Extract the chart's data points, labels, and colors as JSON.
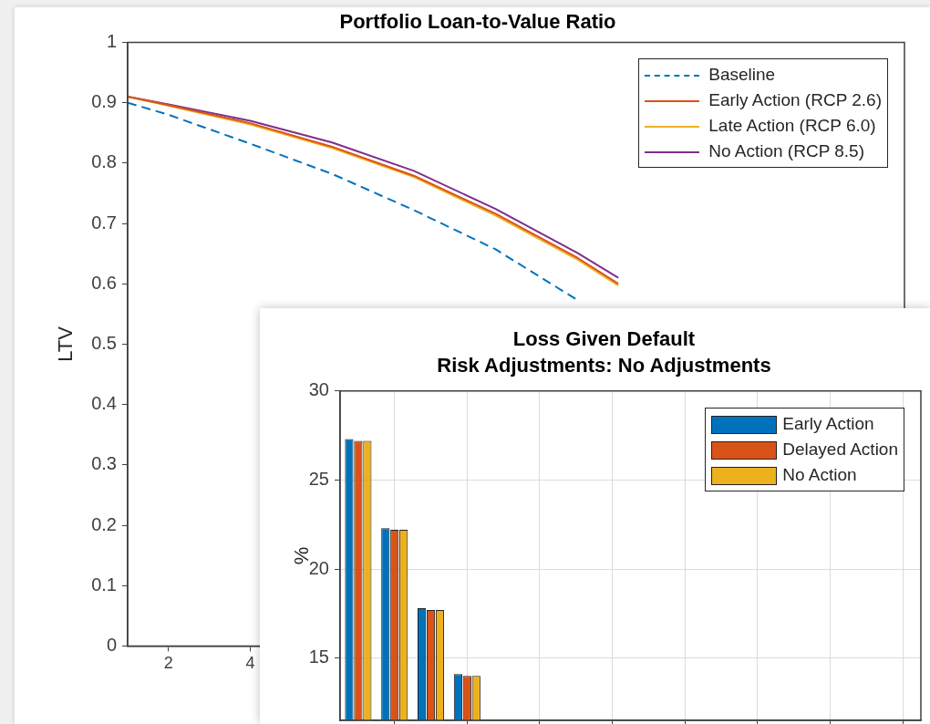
{
  "chart_data": [
    {
      "type": "line",
      "title": "Portfolio Loan-to-Value Ratio",
      "ylabel": "LTV",
      "xlim": [
        1,
        20
      ],
      "xticks": [
        2,
        4
      ],
      "ylim": [
        0,
        1
      ],
      "yticks": [
        0,
        0.1,
        0.2,
        0.3,
        0.4,
        0.5,
        0.6,
        0.7,
        0.8,
        0.9,
        1
      ],
      "grid": false,
      "legend": "top right",
      "marker": "none",
      "series": [
        {
          "name": "Baseline",
          "color": "#0072bd",
          "line_style": "dashed",
          "x": [
            1,
            2,
            4,
            6,
            8,
            10,
            12
          ],
          "values": [
            0.9,
            0.88,
            0.832,
            0.782,
            0.722,
            0.657,
            0.573
          ]
        },
        {
          "name": "Early Action (RCP 2.6)",
          "color": "#d95319",
          "line_style": "solid",
          "x": [
            1,
            2,
            4,
            6,
            8,
            10,
            12,
            13
          ],
          "values": [
            0.91,
            0.896,
            0.866,
            0.827,
            0.779,
            0.716,
            0.643,
            0.6
          ]
        },
        {
          "name": "Late Action (RCP 6.0)",
          "color": "#edb120",
          "line_style": "solid",
          "x": [
            1,
            2,
            4,
            6,
            8,
            10,
            12,
            13
          ],
          "values": [
            0.91,
            0.895,
            0.864,
            0.825,
            0.777,
            0.713,
            0.64,
            0.597
          ]
        },
        {
          "name": "No Action (RCP 8.5)",
          "color": "#7e2f8e",
          "line_style": "solid",
          "x": [
            1,
            2,
            4,
            6,
            8,
            10,
            12,
            13
          ],
          "values": [
            0.91,
            0.897,
            0.87,
            0.834,
            0.787,
            0.724,
            0.651,
            0.61
          ]
        }
      ]
    },
    {
      "type": "bar",
      "title": "Loss Given Default",
      "subtitle": "Risk Adjustments: No Adjustments",
      "ylabel": "%",
      "categories": [
        null,
        null,
        null,
        null,
        null,
        null,
        null,
        null,
        null,
        null,
        null,
        null,
        null,
        null,
        null,
        null
      ],
      "ylim": [
        11.5,
        30
      ],
      "yticks": [
        15,
        20,
        25,
        30
      ],
      "grid": true,
      "legend": "top right",
      "tick_labels": "y",
      "series": [
        {
          "name": "Early Action",
          "color": "#0072bd",
          "values": [
            27.3,
            22.3,
            17.8,
            14.1,
            null,
            null,
            null,
            null,
            null,
            null,
            null,
            null,
            null,
            null,
            null,
            null
          ]
        },
        {
          "name": "Delayed Action",
          "color": "#d95319",
          "values": [
            27.2,
            22.2,
            17.7,
            14.0,
            null,
            null,
            null,
            null,
            null,
            null,
            null,
            null,
            null,
            null,
            null,
            null
          ]
        },
        {
          "name": "No Action",
          "color": "#edb120",
          "values": [
            27.2,
            22.2,
            17.7,
            14.0,
            null,
            null,
            null,
            null,
            null,
            null,
            null,
            null,
            null,
            null,
            null,
            null
          ]
        }
      ]
    }
  ]
}
